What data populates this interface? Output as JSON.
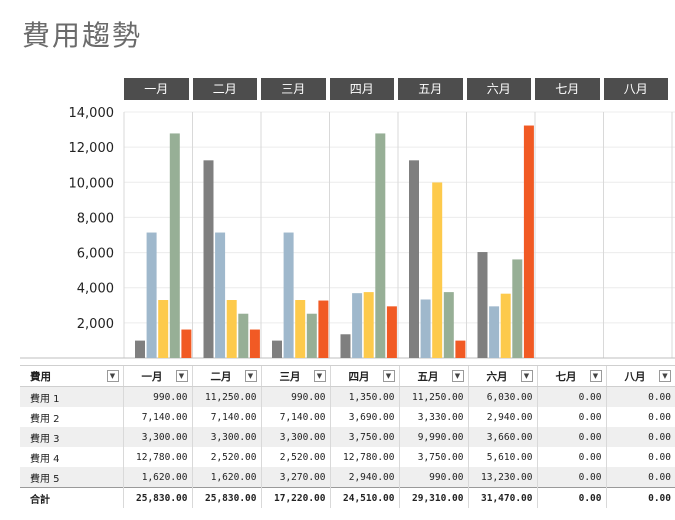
{
  "title": "費用趨勢",
  "months": [
    "一月",
    "二月",
    "三月",
    "四月",
    "五月",
    "六月",
    "七月",
    "八月"
  ],
  "table": {
    "header_label": "費用",
    "rows": [
      {
        "name": "費用 1",
        "values": [
          "990.00",
          "11,250.00",
          "990.00",
          "1,350.00",
          "11,250.00",
          "6,030.00",
          "0.00",
          "0.00"
        ]
      },
      {
        "name": "費用 2",
        "values": [
          "7,140.00",
          "7,140.00",
          "7,140.00",
          "3,690.00",
          "3,330.00",
          "2,940.00",
          "0.00",
          "0.00"
        ]
      },
      {
        "name": "費用 3",
        "values": [
          "3,300.00",
          "3,300.00",
          "3,300.00",
          "3,750.00",
          "9,990.00",
          "3,660.00",
          "0.00",
          "0.00"
        ]
      },
      {
        "name": "費用 4",
        "values": [
          "12,780.00",
          "2,520.00",
          "2,520.00",
          "12,780.00",
          "3,750.00",
          "5,610.00",
          "0.00",
          "0.00"
        ]
      },
      {
        "name": "費用 5",
        "values": [
          "1,620.00",
          "1,620.00",
          "3,270.00",
          "2,940.00",
          "990.00",
          "13,230.00",
          "0.00",
          "0.00"
        ]
      }
    ],
    "total_label": "合計",
    "totals": [
      "25,830.00",
      "25,830.00",
      "17,220.00",
      "24,510.00",
      "29,310.00",
      "31,470.00",
      "0.00",
      "0.00"
    ]
  },
  "chart_data": {
    "type": "bar",
    "categories": [
      "一月",
      "二月",
      "三月",
      "四月",
      "五月",
      "六月",
      "七月",
      "八月"
    ],
    "ylim": [
      0,
      14000
    ],
    "yticks": [
      2000,
      4000,
      6000,
      8000,
      10000,
      12000,
      14000
    ],
    "ytick_labels": [
      "2,000",
      "4,000",
      "6,000",
      "8,000",
      "10,000",
      "12,000",
      "14,000"
    ],
    "grid": true,
    "series": [
      {
        "name": "費用 1",
        "color": "#7f7f7f",
        "values": [
          990,
          11250,
          990,
          1350,
          11250,
          6030,
          0,
          0
        ]
      },
      {
        "name": "費用 2",
        "color": "#9fb8cc",
        "values": [
          7140,
          7140,
          7140,
          3690,
          3330,
          2940,
          0,
          0
        ]
      },
      {
        "name": "費用 3",
        "color": "#fdca4c",
        "values": [
          3300,
          3300,
          3300,
          3750,
          9990,
          3660,
          0,
          0
        ]
      },
      {
        "name": "費用 4",
        "color": "#97af96",
        "values": [
          12780,
          2520,
          2520,
          12780,
          3750,
          5610,
          0,
          0
        ]
      },
      {
        "name": "費用 5",
        "color": "#f15a24",
        "values": [
          1620,
          1620,
          3270,
          2940,
          990,
          13230,
          0,
          0
        ]
      }
    ]
  }
}
